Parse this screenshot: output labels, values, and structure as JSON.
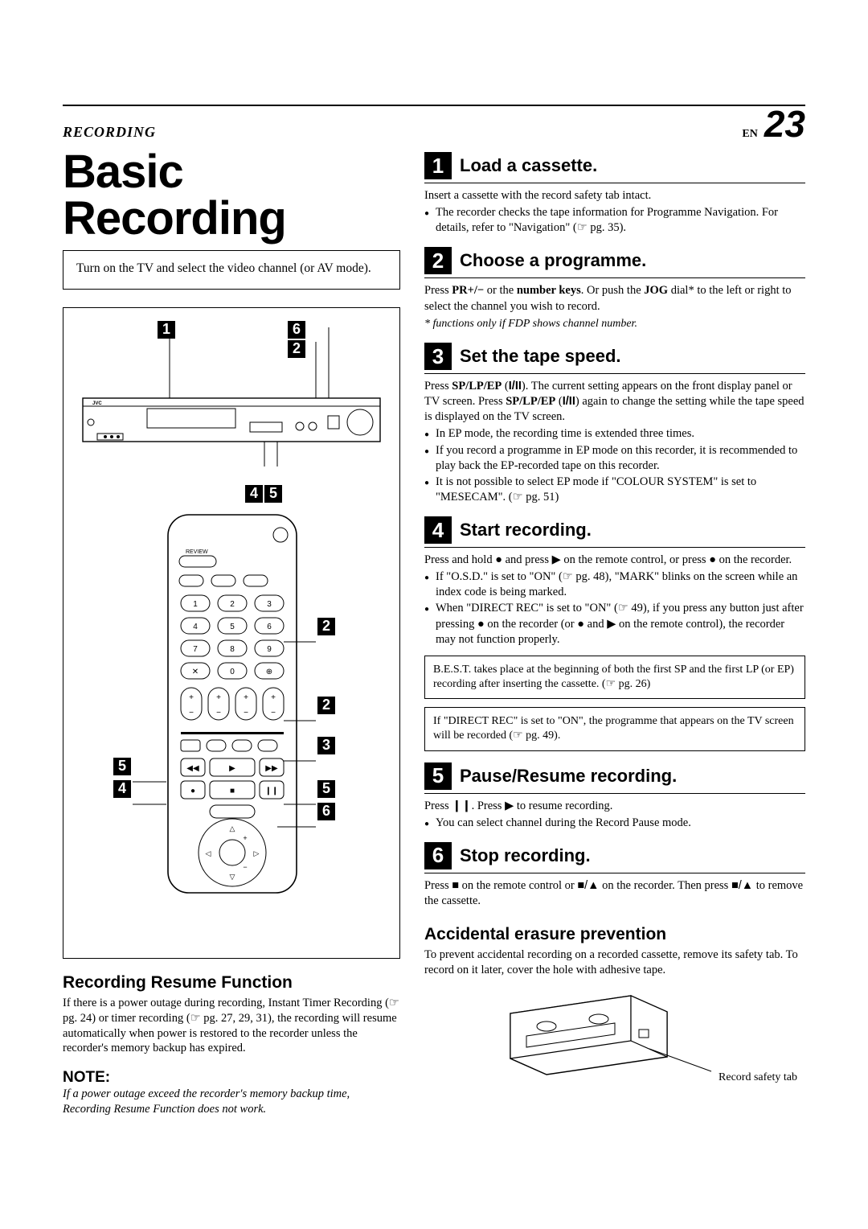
{
  "header": {
    "section": "RECORDING",
    "langCode": "EN",
    "pageNumber": "23"
  },
  "title": "Basic Recording",
  "intro": "Turn on the TV and select the video channel (or AV mode).",
  "vcrCallouts": {
    "topLeft": "1",
    "topRight": "2",
    "topSix": "6",
    "bottomA": "4",
    "bottomB": "5"
  },
  "remoteCallouts": [
    "2",
    "2",
    "3",
    "5",
    "4",
    "5",
    "6"
  ],
  "steps": [
    {
      "num": "1",
      "title": "Load a cassette.",
      "body": "Insert a cassette with the record safety tab intact.",
      "bullets": [
        "The recorder checks the tape information for Programme Navigation. For details, refer to \"Navigation\" (☞ pg. 35)."
      ]
    },
    {
      "num": "2",
      "title": "Choose a programme.",
      "bodyHtml": "Press <b>PR+/−</b> or the <b>number keys</b>. Or push the <b>JOG</b> dial* to the left or right to select the channel you wish to record.",
      "footnote": "* functions only if FDP shows channel number."
    },
    {
      "num": "3",
      "title": "Set the tape speed.",
      "bodyHtml": "Press <b>SP/LP/EP</b> (<b class=\"sym\">I/II</b>). The current setting appears on the front display panel or TV screen. Press <b>SP/LP/EP</b> (<b class=\"sym\">I/II</b>) again to change the setting while the tape speed is displayed on the TV screen.",
      "bullets": [
        "In EP mode, the recording time is extended three times.",
        "If you record a programme in EP mode on this recorder, it is recommended to play back the EP-recorded tape on this recorder.",
        "It is not possible to select EP mode if \"COLOUR SYSTEM\" is set to \"MESECAM\". (☞ pg. 51)"
      ]
    },
    {
      "num": "4",
      "title": "Start recording.",
      "bodyHtml": "Press and hold <span class=\"sym\">●</span> and press <span class=\"sym\">▶</span> on the remote control, or press <span class=\"sym\">●</span> on the recorder.",
      "bullets": [
        "If \"O.S.D.\" is set to \"ON\" (☞ pg. 48), \"MARK\" blinks on the screen while an index code is being marked.",
        "When \"DIRECT REC\" is set to \"ON\" (☞ 49), if you press any button just after pressing ● on the recorder (or ● and ▶ on the remote control), the recorder may not function properly."
      ],
      "boxes": [
        "B.E.S.T. takes place at the beginning of both the first SP and the first LP (or EP) recording after inserting the cassette. (☞ pg. 26)",
        "If \"DIRECT REC\" is set to \"ON\", the programme that appears on the TV screen will be recorded (☞ pg. 49)."
      ]
    },
    {
      "num": "5",
      "title": "Pause/Resume recording.",
      "bodyHtml": "Press <span class=\"sym\">❙❙</span>. Press <span class=\"sym\">▶</span> to resume recording.",
      "bullets": [
        "You can select channel during the Record Pause mode."
      ]
    },
    {
      "num": "6",
      "title": "Stop recording.",
      "bodyHtml": "Press <span class=\"sym\">■</span> on the remote control or <span class=\"sym\">■/▲</span> on the recorder. Then press <span class=\"sym\">■/▲</span> to remove the cassette."
    }
  ],
  "resume": {
    "title": "Recording Resume Function",
    "text": "If there is a power outage during recording, Instant Timer Recording (☞ pg. 24) or timer recording (☞ pg. 27, 29, 31), the recording will resume automatically when power is restored to the recorder unless the recorder's memory backup has expired."
  },
  "note": {
    "label": "NOTE:",
    "text": "If a power outage exceed the recorder's memory backup time, Recording Resume Function does not work."
  },
  "erasure": {
    "title": "Accidental erasure prevention",
    "text": "To prevent accidental recording on a recorded cassette, remove its safety tab. To record on it later, cover the hole with adhesive tape.",
    "label": "Record safety tab"
  },
  "styling": {
    "bg": "#ffffff",
    "text": "#000000",
    "calloutBg": "#000000",
    "calloutFg": "#ffffff",
    "titleFontSize": 58,
    "stepTitleFontSize": 22,
    "bodyFontSize": 14.5
  }
}
